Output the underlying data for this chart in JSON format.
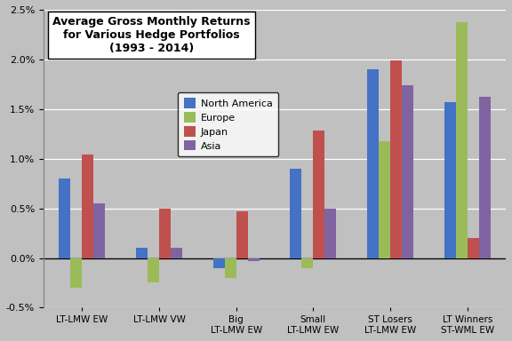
{
  "title_lines": [
    "Average Gross Monthly Returns",
    "for Various Hedge Portfolios",
    "(1993 - 2014)"
  ],
  "categories": [
    "LT-LMW EW",
    "LT-LMW VW",
    "Big\nLT-LMW EW",
    "Small\nLT-LMW EW",
    "ST Losers\nLT-LMW EW",
    "LT Winners\nST-WML EW"
  ],
  "series": {
    "North America": [
      0.008,
      0.001,
      -0.001,
      0.009,
      0.019,
      0.0157
    ],
    "Europe": [
      -0.003,
      -0.0025,
      -0.002,
      -0.001,
      0.0118,
      0.0237
    ],
    "Japan": [
      0.0104,
      0.005,
      0.0047,
      0.0128,
      0.0199,
      0.002
    ],
    "Asia": [
      0.0055,
      0.001,
      -0.0003,
      0.005,
      0.0174,
      0.0162
    ]
  },
  "colors": {
    "North America": "#4472C4",
    "Europe": "#9BBB59",
    "Japan": "#C0504D",
    "Asia": "#8064A2"
  },
  "ylim": [
    -0.005,
    0.025
  ],
  "yticks": [
    -0.005,
    0.0,
    0.005,
    0.01,
    0.015,
    0.02,
    0.025
  ],
  "background_color": "#C0C0C0",
  "bar_width": 0.15
}
